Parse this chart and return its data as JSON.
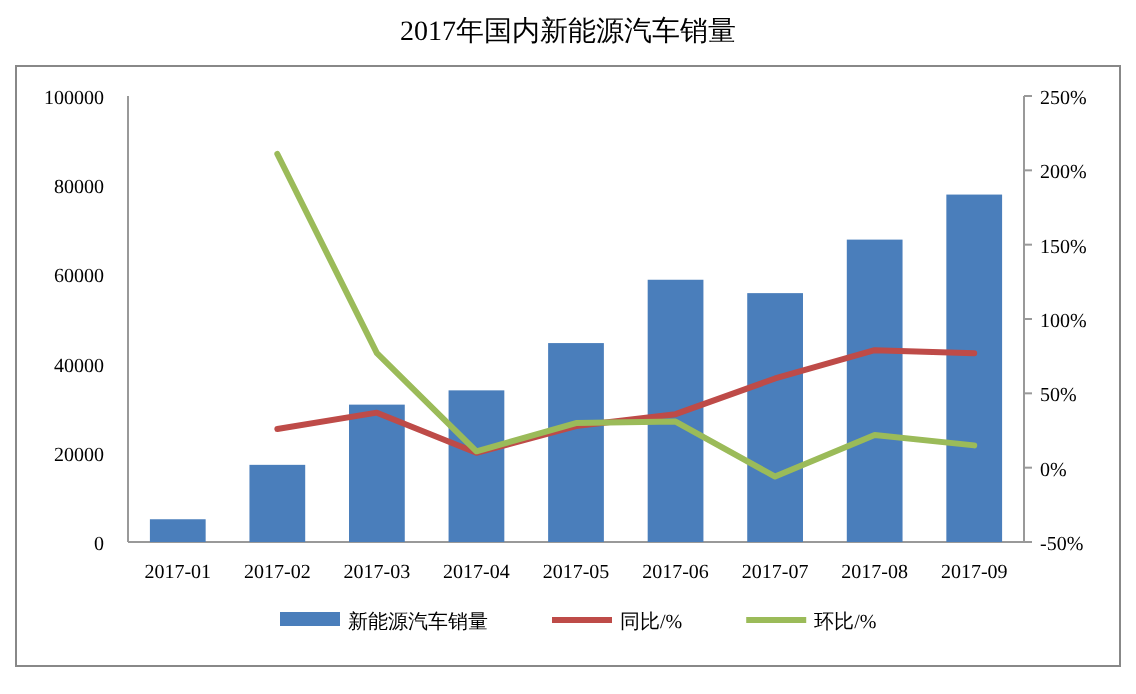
{
  "chart_data": {
    "type": "bar",
    "title": "2017年国内新能源汽车销量",
    "categories": [
      "2017-01",
      "2017-02",
      "2017-03",
      "2017-04",
      "2017-05",
      "2017-06",
      "2017-07",
      "2017-08",
      "2017-09"
    ],
    "series": [
      {
        "name": "新能源汽车销量",
        "color": "#4a7ebb",
        "values": [
          5100,
          17300,
          30800,
          34000,
          44600,
          58800,
          55800,
          67800,
          77900
        ]
      },
      {
        "name": "同比/%",
        "type": "line",
        "axis": "y2",
        "color": "#be4b48",
        "values": [
          null,
          26,
          37,
          10,
          28,
          36,
          60,
          79,
          77
        ]
      },
      {
        "name": "环比/%",
        "type": "line",
        "axis": "y2",
        "color": "#9bbb59",
        "values": [
          null,
          211,
          77,
          11,
          30,
          31,
          -6,
          22,
          15
        ]
      }
    ],
    "ylim": [
      0,
      100000
    ],
    "yticks": [
      0,
      20000,
      40000,
      60000,
      80000,
      100000
    ],
    "y2lim": [
      -50,
      250
    ],
    "y2ticks": [
      {
        "value": -50,
        "label": "-50%"
      },
      {
        "value": 0,
        "label": "0%"
      },
      {
        "value": 50,
        "label": "50%"
      },
      {
        "value": 100,
        "label": "100%"
      },
      {
        "value": 150,
        "label": "150%"
      },
      {
        "value": 200,
        "label": "200%"
      },
      {
        "value": 250,
        "label": "250%"
      }
    ],
    "legend": "bottom"
  }
}
